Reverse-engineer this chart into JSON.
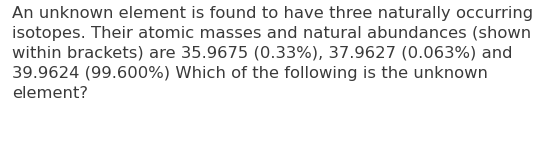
{
  "text": "An unknown element is found to have three naturally occurring\nisotopes. Their atomic masses and natural abundances (shown\nwithin brackets) are 35.9675 (0.33%), 37.9627 (0.063%) and\n39.9624 (99.600%) Which of the following is the unknown\nelement?",
  "background_color": "#ffffff",
  "text_color": "#3a3a3a",
  "font_size": 11.8,
  "font_family": "DejaVu Sans",
  "fig_width": 5.58,
  "fig_height": 1.46,
  "dpi": 100
}
